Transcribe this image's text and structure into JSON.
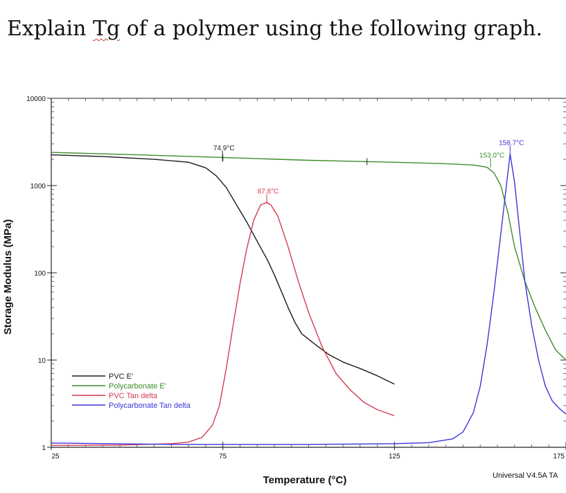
{
  "question": {
    "before": "Explain ",
    "tg": "Tg",
    "after": " of a polymer using the following graph."
  },
  "chart_data": {
    "type": "line",
    "xlabel": "Temperature (°C)",
    "ylabel": "Storage Modulus (MPa)",
    "xlim": [
      25,
      175
    ],
    "ylim": [
      1,
      10000
    ],
    "yscale": "log",
    "x_ticks": [
      25,
      75,
      125,
      175
    ],
    "x_tick_labels": [
      "25",
      "75",
      "125",
      "175"
    ],
    "y_ticks": [
      1,
      10,
      100,
      1000,
      10000
    ],
    "y_tick_labels": [
      "1",
      "10",
      "100",
      "1000",
      "10000"
    ],
    "legend_position": "lower-left",
    "footer_text": "Universal V4.5A TA",
    "series": [
      {
        "name": "PVC E'",
        "color": "#1a1a1a",
        "points": [
          [
            25,
            2250
          ],
          [
            40,
            2150
          ],
          [
            55,
            2000
          ],
          [
            65,
            1850
          ],
          [
            70,
            1600
          ],
          [
            73,
            1300
          ],
          [
            76,
            950
          ],
          [
            79,
            600
          ],
          [
            82,
            380
          ],
          [
            85,
            230
          ],
          [
            88,
            140
          ],
          [
            90,
            95
          ],
          [
            92,
            62
          ],
          [
            94,
            40
          ],
          [
            96,
            27
          ],
          [
            98,
            20
          ],
          [
            102,
            15
          ],
          [
            106,
            11.5
          ],
          [
            110,
            9.5
          ],
          [
            115,
            8
          ],
          [
            120,
            6.6
          ],
          [
            125,
            5.3
          ]
        ]
      },
      {
        "name": "Polycarbonate E'",
        "color": "#3c8c2c",
        "points": [
          [
            25,
            2400
          ],
          [
            50,
            2250
          ],
          [
            75,
            2100
          ],
          [
            100,
            1950
          ],
          [
            125,
            1850
          ],
          [
            140,
            1780
          ],
          [
            148,
            1720
          ],
          [
            152,
            1620
          ],
          [
            154,
            1400
          ],
          [
            156,
            1000
          ],
          [
            158,
            500
          ],
          [
            160,
            200
          ],
          [
            163,
            80
          ],
          [
            166,
            40
          ],
          [
            169,
            22
          ],
          [
            172,
            13
          ],
          [
            175,
            10
          ]
        ]
      },
      {
        "name": "PVC Tan delta",
        "color": "#d43a4f",
        "points": [
          [
            25,
            1.05
          ],
          [
            45,
            1.06
          ],
          [
            60,
            1.1
          ],
          [
            65,
            1.15
          ],
          [
            69,
            1.3
          ],
          [
            72,
            1.8
          ],
          [
            74,
            3
          ],
          [
            76,
            8
          ],
          [
            78,
            25
          ],
          [
            80,
            75
          ],
          [
            82,
            190
          ],
          [
            84,
            400
          ],
          [
            86,
            600
          ],
          [
            87.8,
            640
          ],
          [
            89,
            600
          ],
          [
            91,
            450
          ],
          [
            94,
            200
          ],
          [
            97,
            80
          ],
          [
            100,
            35
          ],
          [
            104,
            14
          ],
          [
            108,
            7
          ],
          [
            112,
            4.6
          ],
          [
            116,
            3.3
          ],
          [
            120,
            2.7
          ],
          [
            125,
            2.3
          ]
        ]
      },
      {
        "name": "Polycarbonate Tan delta",
        "color": "#3c34d8",
        "points": [
          [
            25,
            1.12
          ],
          [
            60,
            1.08
          ],
          [
            100,
            1.08
          ],
          [
            125,
            1.1
          ],
          [
            135,
            1.13
          ],
          [
            142,
            1.25
          ],
          [
            145,
            1.5
          ],
          [
            148,
            2.5
          ],
          [
            150,
            5
          ],
          [
            152,
            15
          ],
          [
            154,
            60
          ],
          [
            156,
            280
          ],
          [
            157.5,
            900
          ],
          [
            158.7,
            2300
          ],
          [
            160,
            1100
          ],
          [
            161.5,
            300
          ],
          [
            163,
            80
          ],
          [
            165,
            25
          ],
          [
            167,
            10
          ],
          [
            169,
            5
          ],
          [
            171,
            3.4
          ],
          [
            173,
            2.8
          ],
          [
            175,
            2.4
          ]
        ]
      }
    ],
    "annotations": [
      {
        "text": "74.9°C",
        "x": 74.9,
        "y": 2000,
        "color": "#1a1a1a"
      },
      {
        "text": "87.8°C",
        "x": 87.8,
        "y": 640,
        "color": "#d43a4f"
      },
      {
        "text": "153.0°C",
        "x": 153.0,
        "y": 1660,
        "color": "#3c8c2c"
      },
      {
        "text": "158.7°C",
        "x": 158.7,
        "y": 2300,
        "color": "#3c34d8"
      }
    ]
  }
}
